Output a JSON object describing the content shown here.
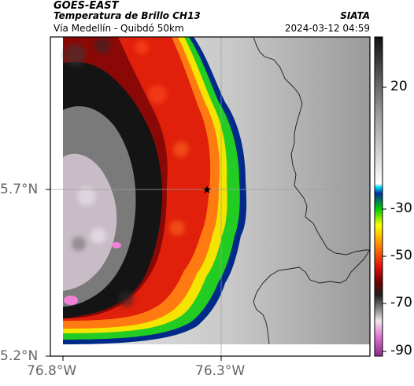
{
  "header": {
    "satellite": "GOES-EAST",
    "product": "Temperatura de Brillo CH13",
    "region": "Vía Medellín - Quibdó 50km",
    "agency": "SIATA",
    "datetime": "2024-03-12 04:59"
  },
  "axes": {
    "lat_ticks": [
      "5.7°N",
      "5.2°N"
    ],
    "lon_ticks": [
      "76.8°W",
      "76.3°W"
    ]
  },
  "colorbar": {
    "ticks": [
      "20",
      "-30",
      "-50",
      "-70",
      "-90"
    ]
  },
  "colors": {
    "frame": "#000000",
    "grid": "#9e9e9e",
    "cold_cloud_red": "#e0200a",
    "core_black": "#101010",
    "warm_gray": "#d0d0d0"
  }
}
